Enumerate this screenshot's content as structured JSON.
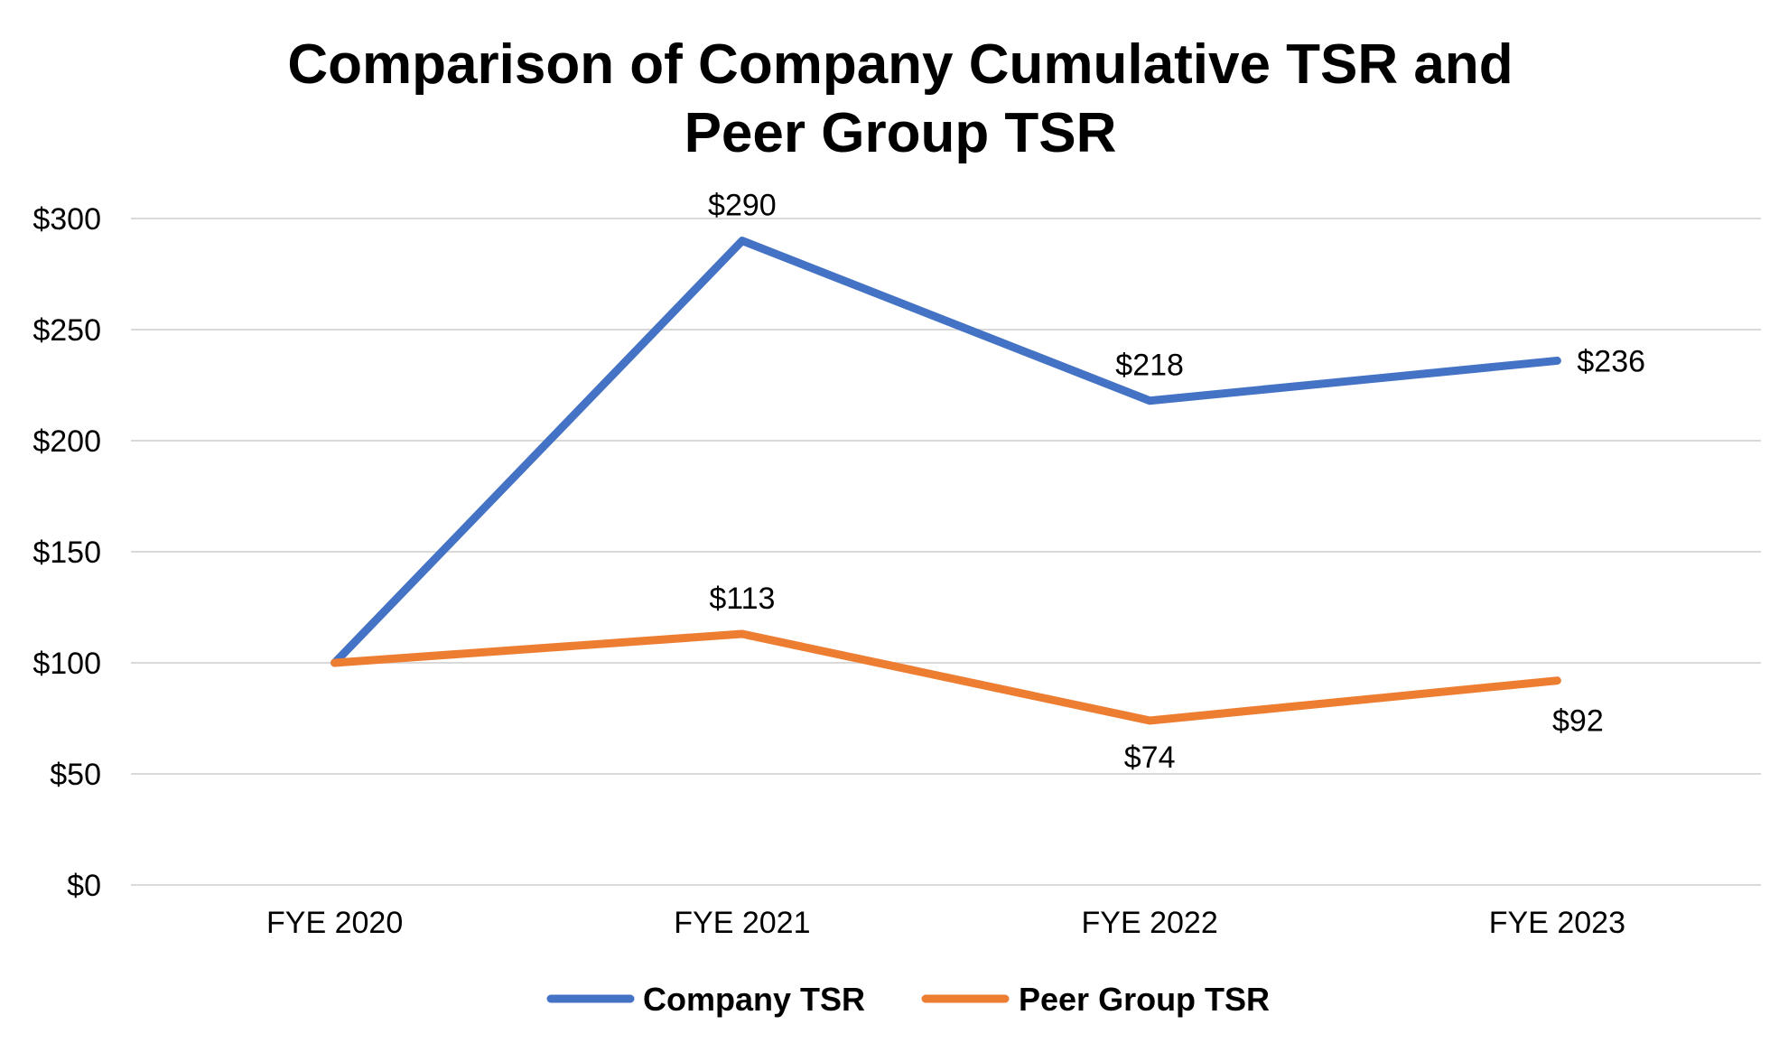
{
  "chart_data": {
    "type": "line",
    "title_lines": [
      "Comparison of Company Cumulative TSR and",
      "Peer Group TSR"
    ],
    "categories": [
      "FYE 2020",
      "FYE 2021",
      "FYE 2022",
      "FYE 2023"
    ],
    "ylim": [
      0,
      300
    ],
    "y_ticks": [
      0,
      50,
      100,
      150,
      200,
      250,
      300
    ],
    "y_tick_labels": [
      "$0",
      "$50",
      "$100",
      "$150",
      "$200",
      "$250",
      "$300"
    ],
    "grid": true,
    "legend_position": "bottom",
    "series": [
      {
        "name": "Company TSR",
        "color": "#4472C4",
        "values": [
          100,
          290,
          218,
          236
        ],
        "labels": [
          "",
          "$290",
          "$218",
          "$236"
        ],
        "label_positions": [
          "",
          "above",
          "above",
          "right"
        ]
      },
      {
        "name": "Peer Group TSR",
        "color": "#ED7D31",
        "values": [
          100,
          113,
          74,
          92
        ],
        "labels": [
          "",
          "$113",
          "$74",
          "$92"
        ],
        "label_positions": [
          "",
          "above",
          "below",
          "below"
        ]
      }
    ]
  }
}
